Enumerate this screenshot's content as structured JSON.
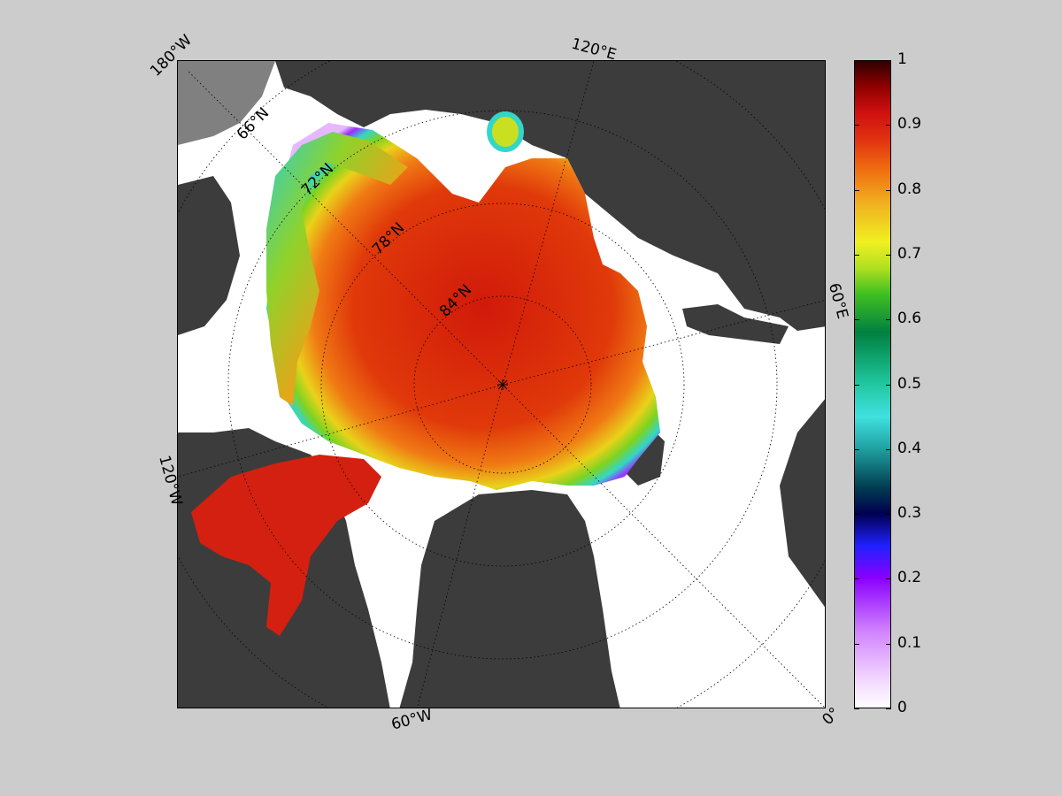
{
  "map": {
    "projection": "north-polar-stereographic",
    "variable": "sea ice concentration",
    "pole_marker": "asterisk",
    "land_color": "#3c3c3c",
    "outside_color": "#808080",
    "open_water_color": "#ffffff",
    "gridline_style": "dotted black",
    "longitude_labels": [
      "180°W",
      "120°E",
      "60°E",
      "0°",
      "60°W",
      "120°W"
    ],
    "latitude_labels": [
      "66°N",
      "72°N",
      "78°N",
      "84°N"
    ]
  },
  "colorbar": {
    "colormap": "white-purple-blue-black-teal-green-yellow-orange-red-darkred",
    "min": 0,
    "max": 1,
    "ticks": [
      "0",
      "0.1",
      "0.2",
      "0.3",
      "0.4",
      "0.5",
      "0.6",
      "0.7",
      "0.8",
      "0.9",
      "1"
    ]
  }
}
